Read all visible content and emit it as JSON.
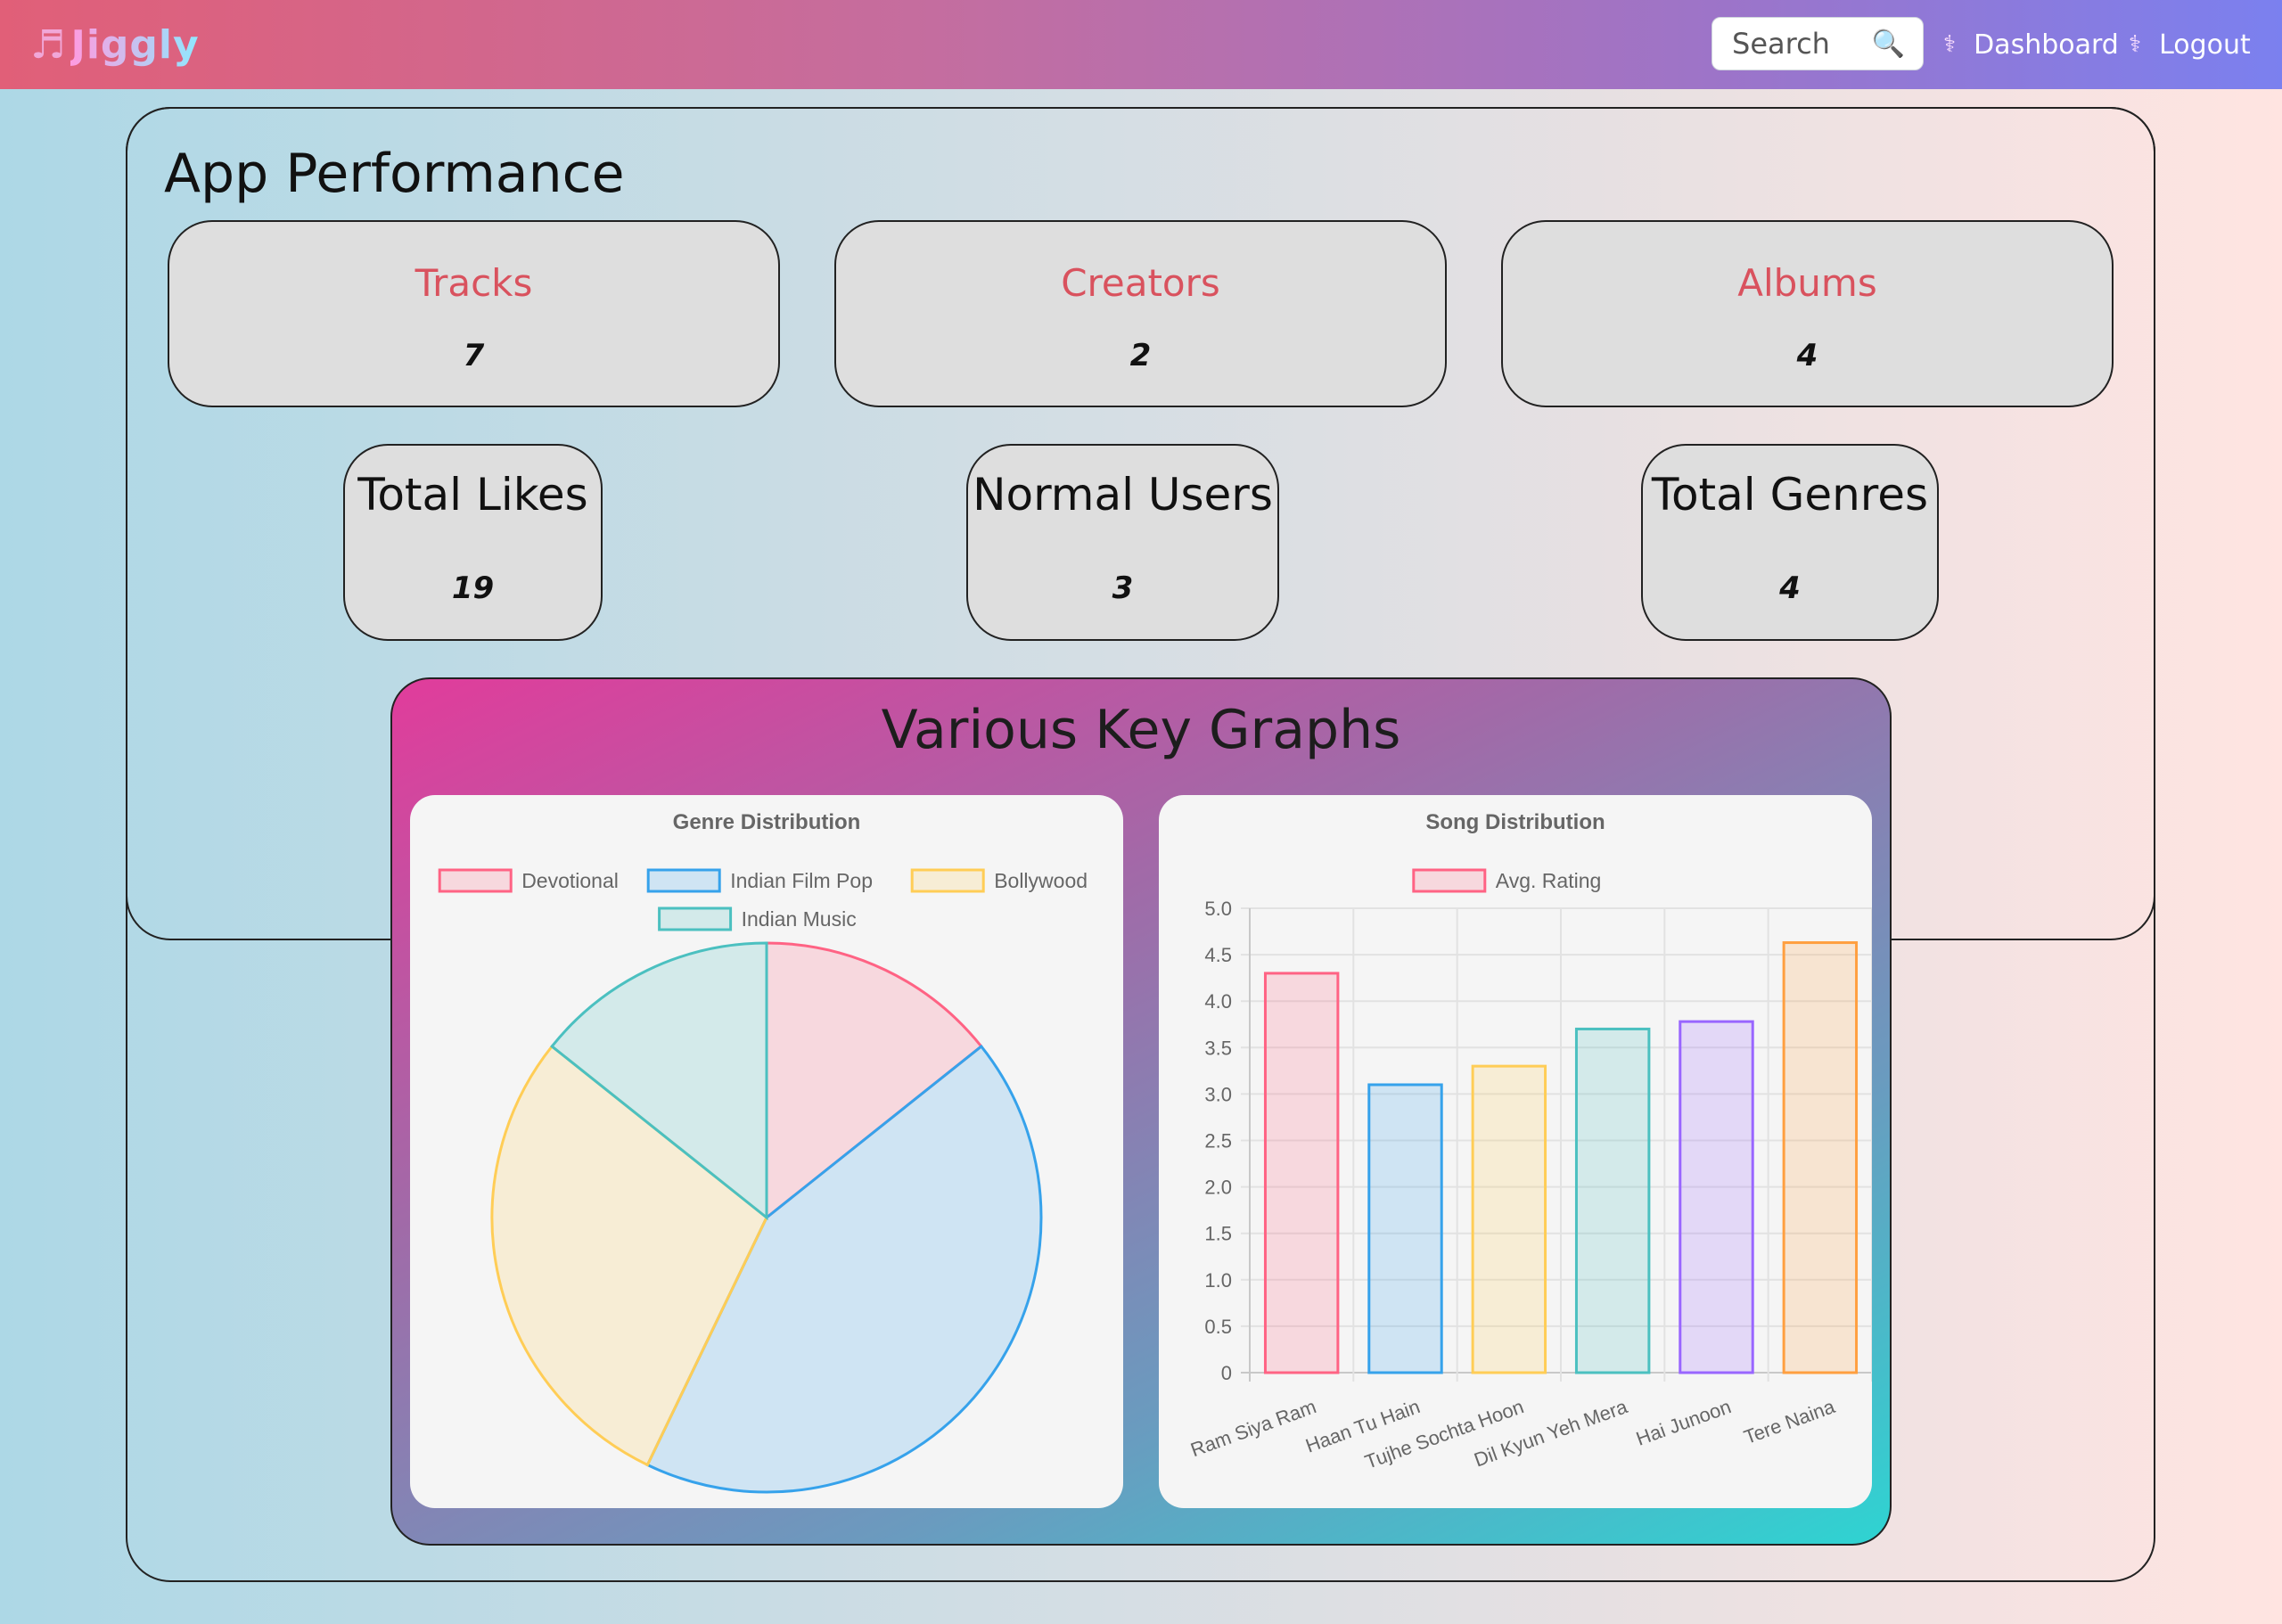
{
  "navbar": {
    "brand": "Jiggly",
    "brand_icon": "music-note-icon",
    "search_placeholder": "Search",
    "search_icon": "magnifier-icon",
    "links": [
      {
        "label": "Dashboard",
        "icon": "caduceus-icon"
      },
      {
        "label": "Logout",
        "icon": "caduceus-icon"
      }
    ]
  },
  "page": {
    "title": "App Performance"
  },
  "stats_top": [
    {
      "label": "Tracks",
      "value": "7"
    },
    {
      "label": "Creators",
      "value": "2"
    },
    {
      "label": "Albums",
      "value": "4"
    }
  ],
  "stats_bottom": [
    {
      "label": "Total Likes",
      "value": "19"
    },
    {
      "label": "Normal Users",
      "value": "3"
    },
    {
      "label": "Total Genres",
      "value": "4"
    }
  ],
  "graphs": {
    "title": "Various Key Graphs"
  },
  "colors": {
    "pink": "#ff6384",
    "blue": "#36a2eb",
    "yellow": "#ffcd56",
    "teal": "#4bc0c0",
    "purple": "#9966ff",
    "orange": "#ff9f40"
  },
  "chart_data": [
    {
      "type": "pie",
      "title": "Genre Distribution",
      "categories": [
        "Devotional",
        "Indian Film Pop",
        "Bollywood",
        "Indian Music"
      ],
      "values": [
        1,
        3,
        2,
        1
      ],
      "colors": [
        "#ff6384",
        "#36a2eb",
        "#ffcd56",
        "#4bc0c0"
      ],
      "legend": "top"
    },
    {
      "type": "bar",
      "title": "Song Distribution",
      "series": [
        {
          "name": "Avg. Rating",
          "values": [
            4.3,
            3.1,
            3.3,
            3.7,
            3.78,
            4.63
          ]
        }
      ],
      "categories": [
        "Ram Siya Ram",
        "Haan Tu Hain",
        "Tujhe Sochta Hoon",
        "Dil Kyun Yeh Mera",
        "Hai Junoon",
        "Tere Naina"
      ],
      "colors": [
        "#ff6384",
        "#36a2eb",
        "#ffcd56",
        "#4bc0c0",
        "#9966ff",
        "#ff9f40"
      ],
      "ylim": [
        0,
        5
      ],
      "yticks": [
        "0",
        "0.5",
        "1.0",
        "1.5",
        "2.0",
        "2.5",
        "3.0",
        "3.5",
        "4.0",
        "4.5",
        "5.0"
      ],
      "xlabel": "",
      "ylabel": "",
      "grid": true,
      "legend": "top"
    }
  ]
}
